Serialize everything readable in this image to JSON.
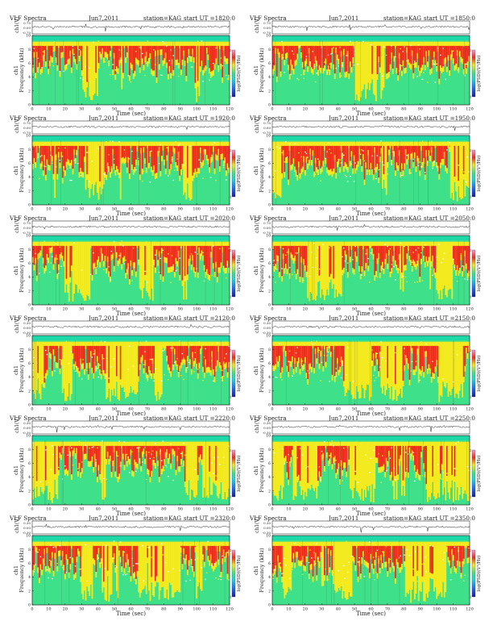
{
  "common": {
    "figure_label": "VLF Spectra",
    "date": "Jun7,2011",
    "station": "station=KAG",
    "start_prefix": "start  UT  =",
    "ylabel_top": "ch1",
    "ylabel_bottom": "Frequency  (kHz)",
    "ch_label": "ch1(V)",
    "xlabel": "Time  (sec)",
    "colorbar_label": "log(PSD)(V²/Hz)",
    "colorbar_ticks": [
      "2",
      "",
      "",
      "",
      "",
      "-1"
    ],
    "colors": {
      "background": "#1fd8a8",
      "green": "#3fe08a",
      "yellow": "#f4ea20",
      "red": "#ef2a1e",
      "white": "#ffffff"
    }
  },
  "chart_data": [
    {
      "type": "heatmap",
      "title": "VLF Spectra  Jun7,2011  station=KAG  start UT =1820:0",
      "start_ut": "1820:0",
      "date_text": "Jun7,2011",
      "xlim": [
        0,
        120
      ],
      "ylim": [
        0,
        10
      ],
      "xticks": [
        0,
        10,
        20,
        30,
        40,
        50,
        60,
        70,
        80,
        90,
        100,
        110,
        120
      ],
      "yticks": [
        0,
        2,
        4,
        6,
        8,
        10
      ],
      "ch_yticks": [
        "0.70",
        "0.00",
        "-0.70"
      ],
      "ch_ylim": [
        -0.7,
        0.7
      ],
      "zlim": [
        -1,
        2
      ],
      "activity": 0.85
    },
    {
      "type": "heatmap",
      "title": "VLF Spectra  Jun7,2011  station=KAG  start UT =1850:0",
      "start_ut": "1850:0",
      "date_text": "Jun7,2011",
      "xlim": [
        0,
        120
      ],
      "ylim": [
        0,
        10
      ],
      "xticks": [
        0,
        10,
        20,
        30,
        40,
        50,
        60,
        70,
        80,
        90,
        100,
        110,
        120
      ],
      "yticks": [
        0,
        2,
        4,
        6,
        8,
        10
      ],
      "ch_yticks": [
        "0.70",
        "0.00",
        "-0.70"
      ],
      "ch_ylim": [
        -0.7,
        0.7
      ],
      "zlim": [
        -1,
        2
      ],
      "activity": 0.82
    },
    {
      "type": "heatmap",
      "title": "VLF Spectra  Jun7,2011  station=KAG  start UT =1920:0",
      "start_ut": "1920:0",
      "date_text": "Jun7,2011",
      "xlim": [
        0,
        120
      ],
      "ylim": [
        0,
        10
      ],
      "xticks": [
        0,
        10,
        20,
        30,
        40,
        50,
        60,
        70,
        80,
        90,
        100,
        110,
        120
      ],
      "yticks": [
        0,
        2,
        4,
        6,
        8,
        10
      ],
      "ch_yticks": [
        "0.70",
        "0.00",
        "-0.70"
      ],
      "ch_ylim": [
        -0.7,
        0.7
      ],
      "zlim": [
        -1,
        2
      ],
      "activity": 0.75
    },
    {
      "type": "heatmap",
      "title": "VLF Spectra  Jun7,2011  station=KAG  start UT =1950:0",
      "start_ut": "1950:0",
      "date_text": "Jun7,2011",
      "xlim": [
        0,
        120
      ],
      "ylim": [
        0,
        10
      ],
      "xticks": [
        0,
        10,
        20,
        30,
        40,
        50,
        60,
        70,
        80,
        90,
        100,
        110,
        120
      ],
      "yticks": [
        0,
        2,
        4,
        6,
        8,
        10
      ],
      "ch_yticks": [
        "0.70",
        "0.00",
        "-0.70"
      ],
      "ch_ylim": [
        -0.7,
        0.7
      ],
      "zlim": [
        -1,
        2
      ],
      "activity": 0.73
    },
    {
      "type": "heatmap",
      "title": "VLF Spectra  Jun7,2011  station=KAG  start UT =2020:0",
      "start_ut": "2020:0",
      "date_text": "Jun7,2011",
      "xlim": [
        0,
        120
      ],
      "ylim": [
        0,
        10
      ],
      "xticks": [
        0,
        10,
        20,
        30,
        40,
        50,
        60,
        70,
        80,
        90,
        100,
        110,
        120
      ],
      "yticks": [
        0,
        2,
        4,
        6,
        8,
        10
      ],
      "ch_yticks": [
        "0.70",
        "0.00",
        "-0.70"
      ],
      "ch_ylim": [
        -0.7,
        0.7
      ],
      "zlim": [
        -1,
        2
      ],
      "activity": 0.62
    },
    {
      "type": "heatmap",
      "title": "VLF Spectra  Jun7,2011  station=KAG  start UT =2050:0",
      "start_ut": "2050:0",
      "date_text": "Jun7,2011",
      "xlim": [
        0,
        120
      ],
      "ylim": [
        0,
        10
      ],
      "xticks": [
        0,
        10,
        20,
        30,
        40,
        50,
        60,
        70,
        80,
        90,
        100,
        110,
        120
      ],
      "yticks": [
        0,
        2,
        4,
        6,
        8,
        10
      ],
      "ch_yticks": [
        "0.70",
        "0.00",
        "-0.70"
      ],
      "ch_ylim": [
        -0.7,
        0.7
      ],
      "zlim": [
        -1,
        2
      ],
      "activity": 0.62
    },
    {
      "type": "heatmap",
      "title": "VLF Spectra  Jun7,2011  station=KAG  start UT =2120:0",
      "start_ut": "2120:0",
      "date_text": "Jun7,2011",
      "xlim": [
        0,
        120
      ],
      "ylim": [
        0,
        10
      ],
      "xticks": [
        0,
        10,
        20,
        30,
        40,
        50,
        60,
        70,
        80,
        90,
        100,
        110,
        120
      ],
      "yticks": [
        0,
        2,
        4,
        6,
        8,
        10
      ],
      "ch_yticks": [
        "0.30",
        "0.00",
        "-0.30"
      ],
      "ch_ylim": [
        -0.3,
        0.3
      ],
      "zlim": [
        -1,
        2
      ],
      "activity": 0.6
    },
    {
      "type": "heatmap",
      "title": "VLF Spectra  Jun7,2011  station=KAG  start UT =2150:0",
      "start_ut": "2150:0",
      "date_text": "Jun7,2011",
      "xlim": [
        0,
        120
      ],
      "ylim": [
        0,
        10
      ],
      "xticks": [
        0,
        10,
        20,
        30,
        40,
        50,
        60,
        70,
        80,
        90,
        100,
        110,
        120
      ],
      "yticks": [
        0,
        2,
        4,
        6,
        8,
        10
      ],
      "ch_yticks": [
        "0.30",
        "0.00",
        "-0.30"
      ],
      "ch_ylim": [
        -0.3,
        0.3
      ],
      "zlim": [
        -1,
        2
      ],
      "activity": 0.64
    },
    {
      "type": "heatmap",
      "title": "VLF Spectra  Jun7,2011  station=KAG  start UT =2220:0",
      "start_ut": "2220:0",
      "date_text": "Jun7,2011",
      "xlim": [
        0,
        120
      ],
      "ylim": [
        0,
        10
      ],
      "xticks": [
        0,
        10,
        20,
        30,
        40,
        50,
        60,
        70,
        80,
        90,
        100,
        110,
        120
      ],
      "yticks": [
        0,
        2,
        4,
        6,
        8,
        10
      ],
      "ch_yticks": [
        "0.30",
        "0.00",
        "-0.30"
      ],
      "ch_ylim": [
        -0.3,
        0.3
      ],
      "zlim": [
        -1,
        2
      ],
      "activity": 0.5
    },
    {
      "type": "heatmap",
      "title": "VLF Spectra  Jun7,2011  station=KAG  start UT =2250:0",
      "start_ut": "2250:0",
      "date_text": "Jun7,2011",
      "xlim": [
        0,
        120
      ],
      "ylim": [
        0,
        10
      ],
      "xticks": [
        0,
        10,
        20,
        30,
        40,
        50,
        60,
        70,
        80,
        90,
        100,
        110,
        120
      ],
      "yticks": [
        0,
        2,
        4,
        6,
        8,
        10
      ],
      "ch_yticks": [
        "0.30",
        "0.00",
        "-0.30"
      ],
      "ch_ylim": [
        -0.3,
        0.3
      ],
      "zlim": [
        -1,
        2
      ],
      "activity": 0.5
    },
    {
      "type": "heatmap",
      "title": "VLF Spectra  Jun7,2011  station=KAG  start UT =2320:0",
      "start_ut": "2320:0",
      "date_text": "Jun7,2011",
      "xlim": [
        0,
        120
      ],
      "ylim": [
        0,
        10
      ],
      "xticks": [
        0,
        10,
        20,
        30,
        40,
        50,
        60,
        70,
        80,
        90,
        100,
        110,
        120
      ],
      "yticks": [
        0,
        2,
        4,
        6,
        8,
        10
      ],
      "ch_yticks": [
        "0.30",
        "0.00",
        "-0.30"
      ],
      "ch_ylim": [
        -0.3,
        0.3
      ],
      "zlim": [
        -1,
        2
      ],
      "activity": 0.42
    },
    {
      "type": "heatmap",
      "title": "VLF Spectra  Jun7,2011  station=KAG  start UT =2350:0",
      "start_ut": "2350:0",
      "date_text": "Jun7,2011",
      "xlim": [
        0,
        120
      ],
      "ylim": [
        0,
        10
      ],
      "xticks": [
        0,
        10,
        20,
        30,
        40,
        50,
        60,
        70,
        80,
        90,
        100,
        110,
        120
      ],
      "yticks": [
        0,
        2,
        4,
        6,
        8,
        10
      ],
      "ch_yticks": [
        "0.30",
        "0.00",
        "-0.30"
      ],
      "ch_ylim": [
        -0.3,
        0.3
      ],
      "zlim": [
        -1,
        2
      ],
      "activity": 0.45
    }
  ]
}
